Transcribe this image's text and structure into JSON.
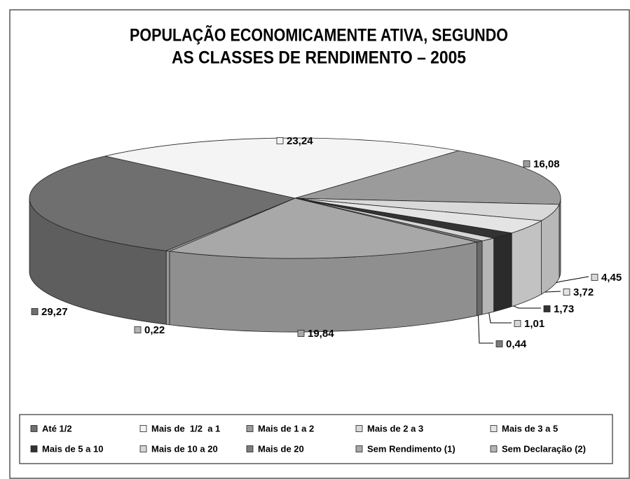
{
  "chart_data": {
    "type": "pie",
    "title": [
      "POPULAÇÃO ECONOMICAMENTE ATIVA, SEGUNDO",
      "AS CLASSES DE RENDIMENTO – 2005"
    ],
    "categories": [
      "Até 1/2",
      "Mais de  1/2  a 1",
      "Mais de 1 a 2",
      "Mais de 2 a 3",
      "Mais de 3 a 5",
      "Mais de 5 a 10",
      "Mais de 10 a 20",
      "Mais de 20",
      "Sem Rendimento (1)",
      "Sem Declaração (2)"
    ],
    "values": [
      29.27,
      23.24,
      16.08,
      4.45,
      3.72,
      1.73,
      1.01,
      0.44,
      19.84,
      0.22
    ],
    "value_labels": [
      "29,27",
      "23,24",
      "16,08",
      "4,45",
      "3,72",
      "1,73",
      "1,01",
      "0,44",
      "19,84",
      "0,22"
    ],
    "colors": [
      "#6f6f6f",
      "#f4f4f4",
      "#9b9b9b",
      "#d9d9d9",
      "#e4e4e4",
      "#333333",
      "#d6d6d6",
      "#7c7c7c",
      "#a8a8a8",
      "#b4b4b4"
    ],
    "legend": "bottom"
  }
}
